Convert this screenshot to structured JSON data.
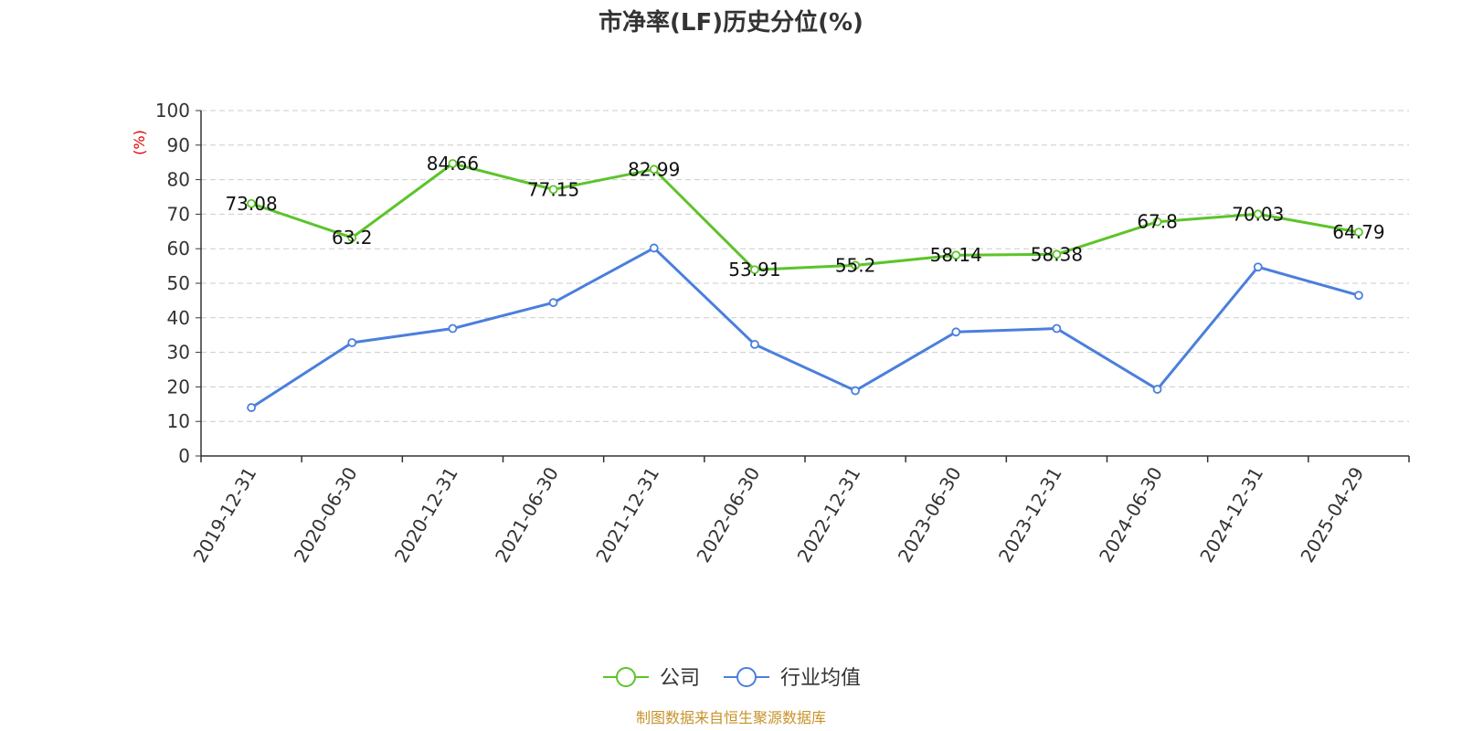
{
  "chart_data": {
    "type": "line",
    "title": "市净率(LF)历史分位(%)",
    "ylabel": "(%)",
    "xlabel": "",
    "ylim": [
      0,
      100
    ],
    "yticks": [
      0,
      10,
      20,
      30,
      40,
      50,
      60,
      70,
      80,
      90,
      100
    ],
    "grid": true,
    "legend_position": "bottom-center",
    "categories": [
      "2019-12-31",
      "2020-06-30",
      "2020-12-31",
      "2021-06-30",
      "2021-12-31",
      "2022-06-30",
      "2022-12-31",
      "2023-06-30",
      "2023-12-31",
      "2024-06-30",
      "2024-12-31",
      "2025-04-29"
    ],
    "series": [
      {
        "name": "公司",
        "color": "#5cc42a",
        "values": [
          73.08,
          63.2,
          84.66,
          77.15,
          82.99,
          53.91,
          55.2,
          58.14,
          58.38,
          67.8,
          70.03,
          64.79
        ],
        "labels": [
          "73.08",
          "63.2",
          "84.66",
          "77.15",
          "82.99",
          "53.91",
          "55.2",
          "58.14",
          "58.38",
          "67.8",
          "70.03",
          "64.79"
        ]
      },
      {
        "name": "行业均值",
        "color": "#4a7fdc",
        "values": [
          14.0,
          32.8,
          36.9,
          44.4,
          60.2,
          32.3,
          18.9,
          35.9,
          36.9,
          19.3,
          54.7,
          46.5
        ]
      }
    ],
    "source": "制图数据来自恒生聚源数据库",
    "colors": {
      "axis": "#333333",
      "grid": "#cccccc",
      "unit_label": "#e00000",
      "source": "#c8922a"
    }
  }
}
